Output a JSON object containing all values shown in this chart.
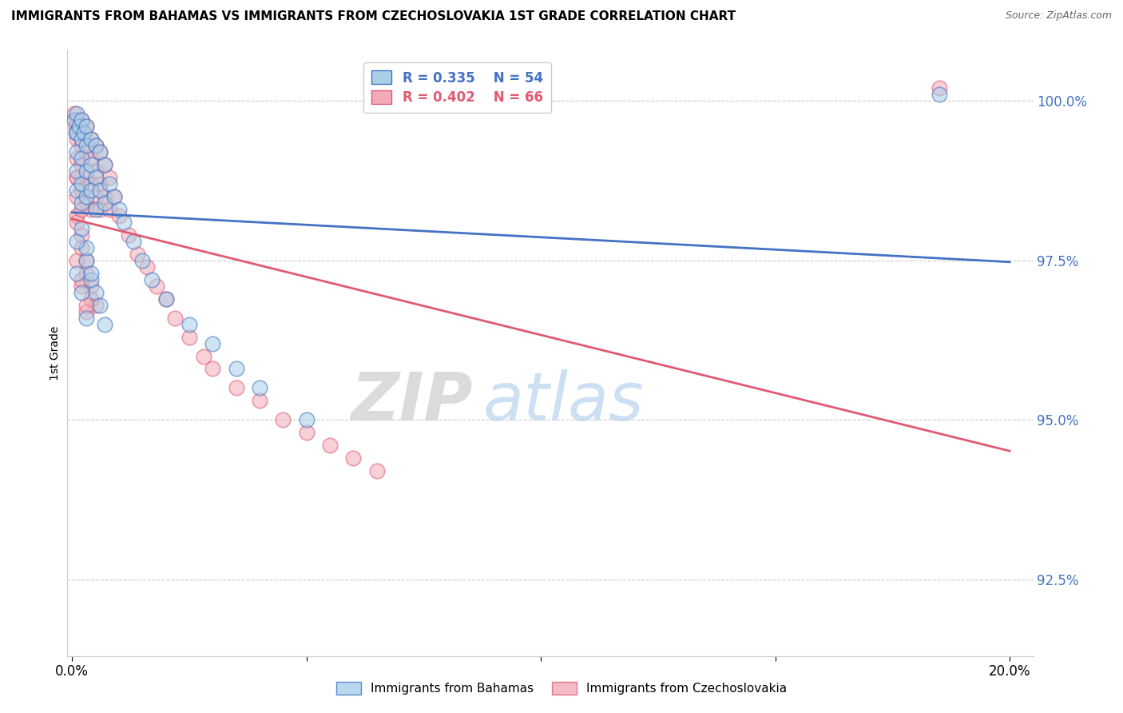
{
  "title": "IMMIGRANTS FROM BAHAMAS VS IMMIGRANTS FROM CZECHOSLOVAKIA 1ST GRADE CORRELATION CHART",
  "source": "Source: ZipAtlas.com",
  "ylabel": "1st Grade",
  "y_min": 91.3,
  "y_max": 100.8,
  "x_min": -0.001,
  "x_max": 0.205,
  "legend_blue": {
    "R": 0.335,
    "N": 54,
    "label": "Immigrants from Bahamas"
  },
  "legend_pink": {
    "R": 0.402,
    "N": 66,
    "label": "Immigrants from Czechoslovakia"
  },
  "color_blue": "#a8cfe8",
  "color_pink": "#f2aab8",
  "line_blue": "#4472c4",
  "line_pink": "#e05a72",
  "ytick_vals": [
    92.5,
    95.0,
    97.5,
    100.0
  ],
  "xtick_vals": [
    0.0,
    0.05,
    0.1,
    0.15,
    0.2
  ],
  "xtick_labels": [
    "0.0%",
    "",
    "",
    "",
    "20.0%"
  ],
  "bahamas_x": [
    0.0005,
    0.0008,
    0.001,
    0.001,
    0.001,
    0.001,
    0.001,
    0.0015,
    0.002,
    0.002,
    0.002,
    0.002,
    0.002,
    0.0025,
    0.003,
    0.003,
    0.003,
    0.003,
    0.004,
    0.004,
    0.004,
    0.005,
    0.005,
    0.005,
    0.006,
    0.006,
    0.007,
    0.007,
    0.008,
    0.009,
    0.01,
    0.011,
    0.013,
    0.015,
    0.017,
    0.02,
    0.025,
    0.03,
    0.035,
    0.04,
    0.05,
    0.003,
    0.004,
    0.005,
    0.006,
    0.007,
    0.002,
    0.003,
    0.004,
    0.001,
    0.001,
    0.002,
    0.003,
    0.185
  ],
  "bahamas_y": [
    99.7,
    99.5,
    99.8,
    99.5,
    99.2,
    98.9,
    98.6,
    99.6,
    99.7,
    99.4,
    99.1,
    98.7,
    98.4,
    99.5,
    99.6,
    99.3,
    98.9,
    98.5,
    99.4,
    99.0,
    98.6,
    99.3,
    98.8,
    98.3,
    99.2,
    98.6,
    99.0,
    98.4,
    98.7,
    98.5,
    98.3,
    98.1,
    97.8,
    97.5,
    97.2,
    96.9,
    96.5,
    96.2,
    95.8,
    95.5,
    95.0,
    97.5,
    97.2,
    97.0,
    96.8,
    96.5,
    98.0,
    97.7,
    97.3,
    97.8,
    97.3,
    97.0,
    96.6,
    100.1
  ],
  "czech_x": [
    0.0005,
    0.0008,
    0.001,
    0.001,
    0.001,
    0.001,
    0.0015,
    0.002,
    0.002,
    0.002,
    0.002,
    0.0025,
    0.003,
    0.003,
    0.003,
    0.003,
    0.004,
    0.004,
    0.004,
    0.004,
    0.005,
    0.005,
    0.005,
    0.006,
    0.006,
    0.006,
    0.007,
    0.007,
    0.008,
    0.008,
    0.009,
    0.01,
    0.012,
    0.014,
    0.016,
    0.018,
    0.02,
    0.022,
    0.025,
    0.028,
    0.03,
    0.035,
    0.04,
    0.045,
    0.05,
    0.055,
    0.06,
    0.065,
    0.001,
    0.002,
    0.003,
    0.004,
    0.005,
    0.001,
    0.002,
    0.003,
    0.001,
    0.001,
    0.002,
    0.003,
    0.004,
    0.001,
    0.002,
    0.002,
    0.003,
    0.185
  ],
  "czech_y": [
    99.8,
    99.6,
    99.7,
    99.4,
    99.1,
    98.8,
    99.6,
    99.7,
    99.3,
    99.0,
    98.6,
    99.5,
    99.6,
    99.2,
    98.8,
    98.4,
    99.4,
    99.1,
    98.7,
    98.3,
    99.3,
    98.9,
    98.5,
    99.2,
    98.7,
    98.3,
    99.0,
    98.5,
    98.8,
    98.3,
    98.5,
    98.2,
    97.9,
    97.6,
    97.4,
    97.1,
    96.9,
    96.6,
    96.3,
    96.0,
    95.8,
    95.5,
    95.3,
    95.0,
    94.8,
    94.6,
    94.4,
    94.2,
    98.2,
    97.9,
    97.5,
    97.1,
    96.8,
    97.5,
    97.1,
    96.7,
    98.5,
    98.1,
    97.7,
    97.3,
    96.9,
    98.8,
    98.3,
    97.2,
    96.8,
    100.2
  ]
}
